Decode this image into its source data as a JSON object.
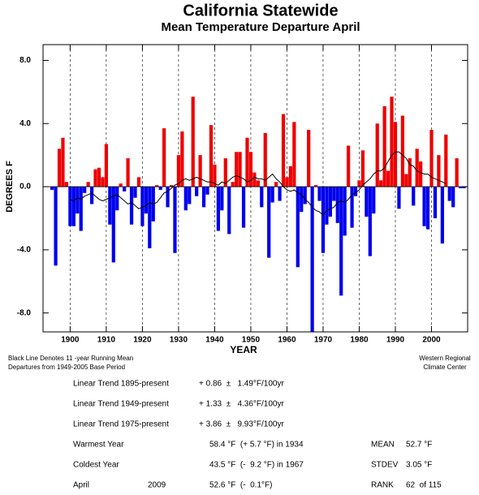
{
  "chart_data": {
    "type": "bar",
    "title": "California Statewide",
    "subtitle": "Mean Temperature Departure April",
    "x_label": "YEAR",
    "y_label": "DEGREES F",
    "x": [
      1895,
      1896,
      1897,
      1898,
      1899,
      1900,
      1901,
      1902,
      1903,
      1904,
      1905,
      1906,
      1907,
      1908,
      1909,
      1910,
      1911,
      1912,
      1913,
      1914,
      1915,
      1916,
      1917,
      1918,
      1919,
      1920,
      1921,
      1922,
      1923,
      1924,
      1925,
      1926,
      1927,
      1928,
      1929,
      1930,
      1931,
      1932,
      1933,
      1934,
      1935,
      1936,
      1937,
      1938,
      1939,
      1940,
      1941,
      1942,
      1943,
      1944,
      1945,
      1946,
      1947,
      1948,
      1949,
      1950,
      1951,
      1952,
      1953,
      1954,
      1955,
      1956,
      1957,
      1958,
      1959,
      1960,
      1961,
      1962,
      1963,
      1964,
      1965,
      1966,
      1967,
      1968,
      1969,
      1970,
      1971,
      1972,
      1973,
      1974,
      1975,
      1976,
      1977,
      1978,
      1979,
      1980,
      1981,
      1982,
      1983,
      1984,
      1985,
      1986,
      1987,
      1988,
      1989,
      1990,
      1991,
      1992,
      1993,
      1994,
      1995,
      1996,
      1997,
      1998,
      1999,
      2000,
      2001,
      2002,
      2003,
      2004,
      2005,
      2006,
      2007,
      2008,
      2009
    ],
    "series": [
      {
        "type": "bar",
        "color": "#ee0000",
        "negative_color": "#0000ee",
        "values": [
          -0.2,
          -5.0,
          2.4,
          3.1,
          0.3,
          -2.5,
          -2.5,
          -1.7,
          -2.8,
          -0.4,
          0.3,
          -1.1,
          1.1,
          1.2,
          0.6,
          2.7,
          -2.4,
          -4.8,
          -1.5,
          0.2,
          -0.3,
          1.8,
          -2.4,
          -0.7,
          0.6,
          -2.5,
          -1.7,
          -3.9,
          -2.2,
          0.1,
          -0.2,
          3.7,
          -1.3,
          0.1,
          -4.2,
          2.0,
          3.5,
          -1.5,
          -1.1,
          5.7,
          -0.6,
          2.0,
          -1.3,
          -0.5,
          3.9,
          1.4,
          -2.8,
          -1.5,
          1.8,
          -3.0,
          0.3,
          2.2,
          2.2,
          -2.6,
          3.1,
          2.2,
          0.9,
          0.4,
          -1.3,
          3.4,
          -4.5,
          -1.0,
          0.3,
          -0.9,
          4.6,
          0.6,
          1.3,
          4.1,
          -5.1,
          -1.6,
          -1.1,
          3.6,
          -9.2,
          0.1,
          -0.9,
          -4.2,
          -2.4,
          -1.9,
          -0.9,
          -2.3,
          -6.9,
          -3.1,
          2.6,
          -2.6,
          -0.6,
          0.4,
          2.3,
          -1.9,
          -4.4,
          -1.7,
          4.0,
          0.4,
          5.1,
          1.0,
          5.7,
          4.1,
          -1.4,
          4.5,
          0.8,
          1.8,
          -1.2,
          2.4,
          1.6,
          -2.5,
          -2.7,
          3.6,
          -2.0,
          2.0,
          -3.6,
          3.3,
          -0.9,
          -1.3,
          1.8,
          -0.1,
          -0.1
        ]
      },
      {
        "type": "line",
        "color": "#000000",
        "values": [
          null,
          null,
          null,
          null,
          null,
          -0.8,
          -0.9,
          -0.7,
          -0.8,
          -0.6,
          -0.5,
          -0.4,
          -0.6,
          -0.8,
          -0.9,
          -0.8,
          -0.7,
          -0.6,
          -0.5,
          -0.7,
          -0.9,
          -1.1,
          -1.0,
          -1.2,
          -1.4,
          -1.3,
          -1.2,
          -1.0,
          -1.1,
          -1.0,
          -0.7,
          -0.4,
          -0.3,
          -0.1,
          0.1,
          0.2,
          0.4,
          0.5,
          0.4,
          0.5,
          0.6,
          0.5,
          0.4,
          0.3,
          0.3,
          0.2,
          0.1,
          0.3,
          0.2,
          0.4,
          0.6,
          0.7,
          0.6,
          0.5,
          0.3,
          0.4,
          0.6,
          0.5,
          0.5,
          0.4,
          0.6,
          0.8,
          0.5,
          0.3,
          0.0,
          -0.2,
          -0.3,
          -0.2,
          -0.4,
          -0.5,
          -0.8,
          -1.0,
          -1.3,
          -1.5,
          -1.6,
          -1.8,
          -1.5,
          -1.4,
          -1.3,
          -1.0,
          -0.9,
          -1.0,
          -0.8,
          -0.5,
          -0.4,
          -0.2,
          0.1,
          0.3,
          0.5,
          0.8,
          1.0,
          1.0,
          1.2,
          1.6,
          2.0,
          2.2,
          2.2,
          2.0,
          1.8,
          1.4,
          1.3,
          1.0,
          0.9,
          0.8,
          0.8,
          0.6,
          0.5,
          0.4,
          0.3,
          0.2,
          null,
          null,
          null,
          null,
          null
        ]
      }
    ],
    "xlim": [
      1892.5,
      2010
    ],
    "xticks": [
      1900,
      1910,
      1920,
      1930,
      1940,
      1950,
      1960,
      1970,
      1980,
      1990,
      2000
    ],
    "ylim": [
      -9.2,
      9.0
    ],
    "yticks": [
      {
        "value": 8,
        "label": "8.0"
      },
      {
        "value": 4,
        "label": "4.0"
      },
      {
        "value": 0,
        "label": "0.0"
      },
      {
        "value": -4,
        "label": "-4.0"
      },
      {
        "value": -8,
        "label": "-8.0"
      }
    ],
    "grid": true,
    "note_left": [
      "Black Line Denotes 11 -year Running Mean",
      "Departures from 1949-2005 Base Period"
    ],
    "note_right": [
      "Western Regional",
      "Climate Center"
    ]
  },
  "stats": {
    "trends": [
      {
        "label": "Linear Trend 1895-present",
        "value": "+ 0.86  ±   1.49°F/100yr"
      },
      {
        "label": "Linear Trend 1949-present",
        "value": "+ 1.33  ±   4.36°F/100yr"
      },
      {
        "label": "Linear Trend 1975-present",
        "value": "+ 3.86  ±   9.93°F/100yr"
      }
    ],
    "records": [
      {
        "label": "Warmest Year",
        "value": "58.4 °F  (+ 5.7 °F) in 1934",
        "stat_label": "MEAN",
        "stat_value": "52.7 °F"
      },
      {
        "label": "Coldest Year",
        "value": "43.5 °F  (-  9.2 °F) in 1967",
        "stat_label": "STDEV",
        "stat_value": "3.05 °F"
      },
      {
        "label": "April",
        "year": "2009",
        "value": "52.6 °F  (-  0.1°F)",
        "stat_label": "RANK",
        "stat_value": "62  of 115"
      }
    ]
  }
}
